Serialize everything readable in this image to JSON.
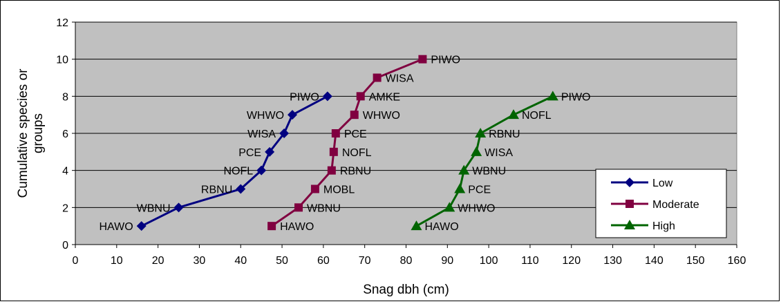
{
  "chart_data": {
    "type": "line",
    "xlabel": "Snag dbh (cm)",
    "ylabel": "Cumulative species or groups",
    "xlim": [
      0,
      160
    ],
    "ylim": [
      0,
      12
    ],
    "x_ticks": [
      "0",
      "10",
      "20",
      "30",
      "40",
      "50",
      "60",
      "70",
      "80",
      "90",
      "100",
      "110",
      "120",
      "130",
      "140",
      "150",
      "160"
    ],
    "y_ticks": [
      "0",
      "2",
      "4",
      "6",
      "8",
      "10",
      "12"
    ],
    "grid": "horizontal",
    "legend": "bottom-right",
    "plot_area_color": "#c0c0c0",
    "series": [
      {
        "name": "Low",
        "color": "#000080",
        "marker": "diamond",
        "label_side": "left",
        "points": [
          {
            "x": 16,
            "y": 1,
            "label": "HAWO"
          },
          {
            "x": 25,
            "y": 2,
            "label": "WBNU"
          },
          {
            "x": 40,
            "y": 3,
            "label": "RBNU"
          },
          {
            "x": 45,
            "y": 4,
            "label": "NOFL"
          },
          {
            "x": 47,
            "y": 5,
            "label": "PCE"
          },
          {
            "x": 50.5,
            "y": 6,
            "label": "WISA"
          },
          {
            "x": 52.5,
            "y": 7,
            "label": "WHWO"
          },
          {
            "x": 61,
            "y": 8,
            "label": "PIWO"
          }
        ]
      },
      {
        "name": "Moderate",
        "color": "#800040",
        "marker": "square",
        "label_side": "right",
        "points": [
          {
            "x": 47.5,
            "y": 1,
            "label": "HAWO"
          },
          {
            "x": 54,
            "y": 2,
            "label": "WBNU"
          },
          {
            "x": 58,
            "y": 3,
            "label": "MOBL"
          },
          {
            "x": 62,
            "y": 4,
            "label": "RBNU"
          },
          {
            "x": 62.5,
            "y": 5,
            "label": "NOFL"
          },
          {
            "x": 63,
            "y": 6,
            "label": "PCE"
          },
          {
            "x": 67.5,
            "y": 7,
            "label": "WHWO"
          },
          {
            "x": 69,
            "y": 8,
            "label": "AMKE"
          },
          {
            "x": 73,
            "y": 9,
            "label": "WISA"
          },
          {
            "x": 84,
            "y": 10,
            "label": "PIWO"
          }
        ]
      },
      {
        "name": "High",
        "color": "#006400",
        "marker": "triangle",
        "label_side": "right",
        "points": [
          {
            "x": 82.5,
            "y": 1,
            "label": "HAWO"
          },
          {
            "x": 90.5,
            "y": 2,
            "label": "WHWO"
          },
          {
            "x": 93,
            "y": 3,
            "label": "PCE"
          },
          {
            "x": 94,
            "y": 4,
            "label": "WBNU"
          },
          {
            "x": 97,
            "y": 5,
            "label": "WISA"
          },
          {
            "x": 98,
            "y": 6,
            "label": "RBNU"
          },
          {
            "x": 106,
            "y": 7,
            "label": "NOFL"
          },
          {
            "x": 115.5,
            "y": 8,
            "label": "PIWO"
          }
        ]
      }
    ]
  }
}
